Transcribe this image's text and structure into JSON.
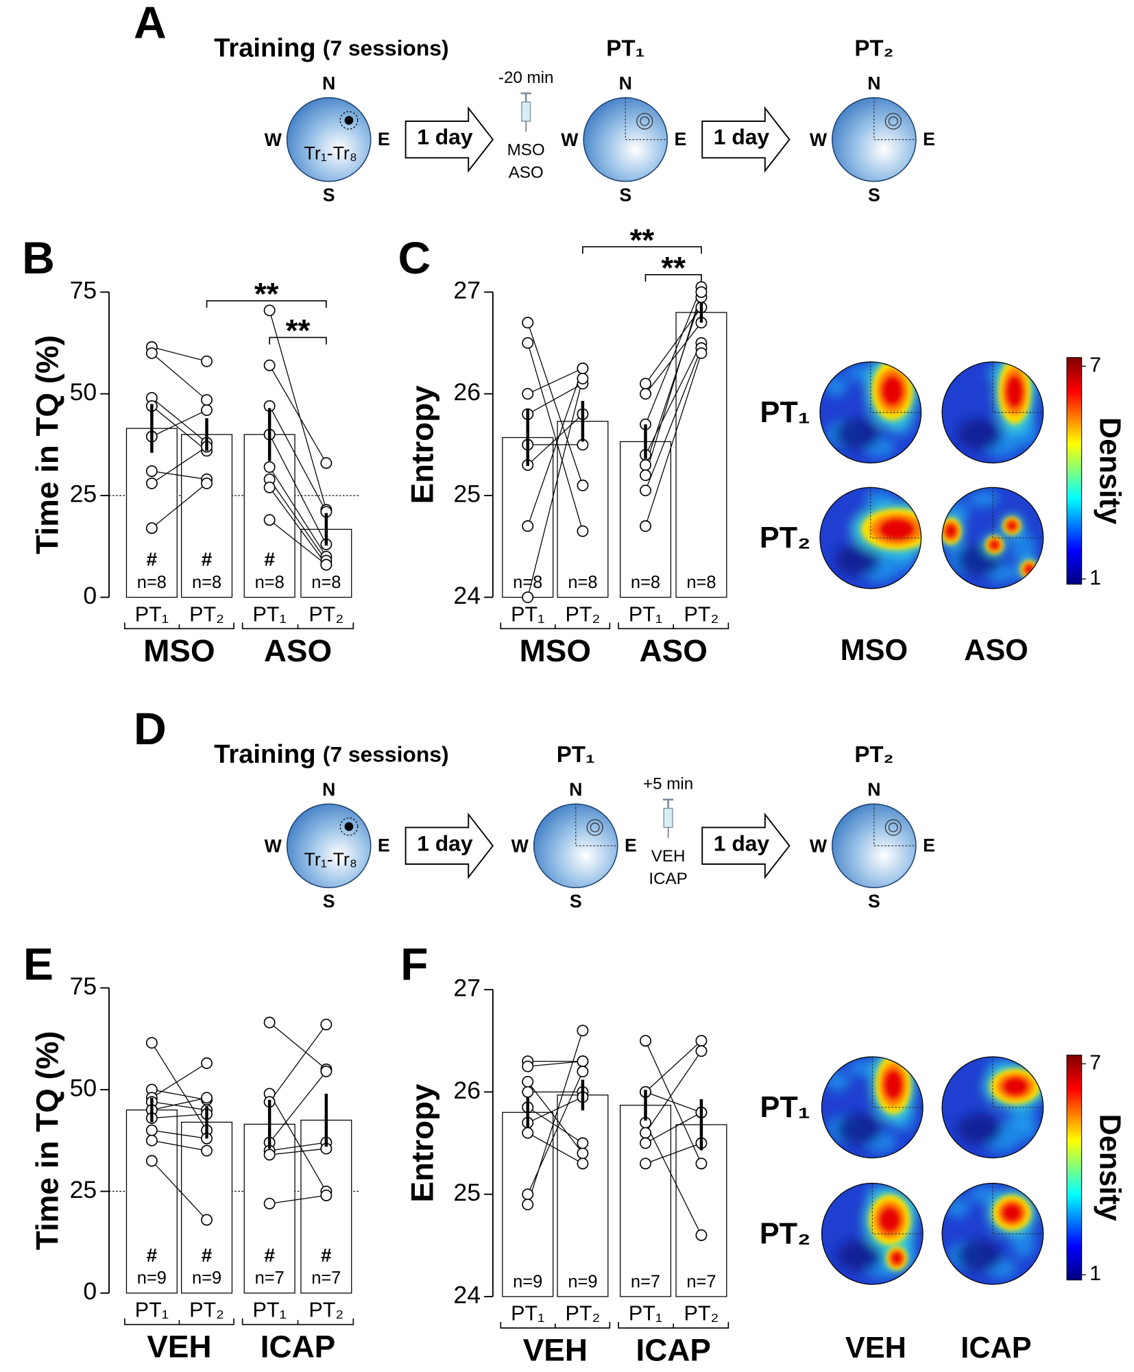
{
  "schematics": [
    {
      "letter": "A",
      "training": "Training",
      "sessions": "(7 sessions)",
      "trials": "Tr₁-Tr₈",
      "compass": {
        "N": "N",
        "E": "E",
        "S": "S",
        "W": "W"
      },
      "interval": "1 day",
      "injection": {
        "time": "-20 min",
        "drugs": [
          "MSO",
          "ASO"
        ]
      },
      "probes": [
        "PT₁",
        "PT₂"
      ]
    },
    {
      "letter": "D",
      "training": "Training",
      "sessions": "(7 sessions)",
      "trials": "Tr₁-Tr₈",
      "compass": {
        "N": "N",
        "E": "E",
        "S": "S",
        "W": "W"
      },
      "interval": "1 day",
      "injection": {
        "time": "+5 min",
        "drugs": [
          "VEH",
          "ICAP"
        ]
      },
      "probes": [
        "PT₁",
        "PT₂"
      ]
    }
  ],
  "heatmaps": [
    {
      "rows": [
        "PT₁",
        "PT₂"
      ],
      "columns": [
        "MSO",
        "ASO"
      ],
      "colorbar": {
        "label": "Density",
        "ticks": [
          1,
          7
        ]
      }
    },
    {
      "rows": [
        "PT₁",
        "PT₂"
      ],
      "columns": [
        "VEH",
        "ICAP"
      ],
      "colorbar": {
        "label": "Density",
        "ticks": [
          1,
          7
        ]
      }
    }
  ],
  "chart_data": [
    {
      "type": "bar",
      "panel": "B",
      "ylabel": "Time in TQ (%)",
      "color": "#ffffff",
      "categories": [
        "PT₁",
        "PT₂",
        "PT₁",
        "PT₂"
      ],
      "groups": [
        "MSO",
        "ASO"
      ],
      "values": [
        41.5,
        40,
        40,
        16.7
      ],
      "errors": [
        6,
        4,
        6.5,
        4
      ],
      "points": [
        [
          61.5,
          60,
          49,
          47,
          39.5,
          31,
          28,
          17
        ],
        [
          58,
          48.5,
          38,
          36,
          46,
          29,
          37,
          28
        ],
        [
          70.5,
          57,
          47,
          40,
          32,
          29,
          27,
          19
        ],
        [
          21.5,
          33,
          21,
          13,
          10,
          9,
          8,
          8
        ]
      ],
      "n_labels": [
        "n=8",
        "n=8",
        "n=8",
        "n=8"
      ],
      "markers": [
        "#",
        "#",
        "#",
        null
      ],
      "reference_line": 25,
      "significance": [
        {
          "bars": [
            1,
            3
          ],
          "label": "**"
        },
        {
          "bars": [
            2,
            3
          ],
          "label": "**"
        }
      ],
      "ylim": [
        0,
        75
      ],
      "yticks": [
        0,
        25,
        50,
        75
      ]
    },
    {
      "type": "bar",
      "panel": "C",
      "ylabel": "Entropy",
      "color": "#ffffff",
      "categories": [
        "PT₁",
        "PT₂",
        "PT₁",
        "PT₂"
      ],
      "groups": [
        "MSO",
        "ASO"
      ],
      "values": [
        25.57,
        25.73,
        25.53,
        26.8
      ],
      "errors": [
        0.28,
        0.2,
        0.17,
        0.1
      ],
      "points": [
        [
          26.7,
          26.5,
          26.0,
          25.8,
          25.5,
          25.3,
          24.7,
          24.0
        ],
        [
          25.1,
          24.65,
          26.25,
          26.1,
          25.5,
          25.8,
          26.25,
          26.15
        ],
        [
          26.1,
          26.0,
          25.7,
          25.4,
          25.3,
          25.2,
          25.05,
          24.7
        ],
        [
          26.85,
          26.7,
          27.05,
          26.5,
          26.95,
          27.0,
          26.45,
          26.4
        ]
      ],
      "n_labels": [
        "n=8",
        "n=8",
        "n=8",
        "n=8"
      ],
      "significance": [
        {
          "bars": [
            1,
            3
          ],
          "label": "**"
        },
        {
          "bars": [
            2,
            3
          ],
          "label": "**"
        }
      ],
      "ylim": [
        24,
        27
      ],
      "yticks": [
        24,
        25,
        26,
        27
      ]
    },
    {
      "type": "bar",
      "panel": "E",
      "ylabel": "Time in TQ (%)",
      "color": "#ffffff",
      "categories": [
        "PT₁",
        "PT₂",
        "PT₁",
        "PT₂"
      ],
      "groups": [
        "VEH",
        "ICAP"
      ],
      "values": [
        45,
        42,
        41.5,
        42.5
      ],
      "errors": [
        3,
        4,
        6,
        6.5
      ],
      "points": [
        [
          61.5,
          50,
          48,
          47,
          45,
          43,
          40,
          37.5,
          32.5
        ],
        [
          40,
          47.5,
          56.5,
          45,
          48,
          44,
          38,
          35,
          18
        ],
        [
          66.5,
          49,
          47,
          37,
          35,
          34,
          22
        ],
        [
          55,
          25,
          66,
          54.5,
          37,
          35.5,
          24
        ]
      ],
      "n_labels": [
        "n=9",
        "n=9",
        "n=7",
        "n=7"
      ],
      "markers": [
        "#",
        "#",
        "#",
        "#"
      ],
      "reference_line": 25,
      "ylim": [
        0,
        75
      ],
      "yticks": [
        0,
        25,
        50,
        75
      ]
    },
    {
      "type": "bar",
      "panel": "F",
      "ylabel": "Entropy",
      "color": "#ffffff",
      "categories": [
        "PT₁",
        "PT₂",
        "PT₁",
        "PT₂"
      ],
      "groups": [
        "VEH",
        "ICAP"
      ],
      "values": [
        25.8,
        25.97,
        25.87,
        25.68
      ],
      "errors": [
        0.15,
        0.15,
        0.15,
        0.25
      ],
      "points": [
        [
          26.3,
          26.25,
          26.1,
          26.0,
          25.85,
          25.7,
          25.6,
          25.0,
          24.9
        ],
        [
          26.3,
          26.3,
          25.4,
          26.0,
          25.5,
          25.95,
          25.3,
          26.2,
          26.6
        ],
        [
          26.5,
          26.0,
          26.0,
          25.7,
          25.6,
          25.5,
          25.3
        ],
        [
          25.3,
          26.5,
          25.8,
          24.6,
          26.4,
          25.8,
          25.5
        ]
      ],
      "n_labels": [
        "n=9",
        "n=9",
        "n=7",
        "n=7"
      ],
      "ylim": [
        24,
        27
      ],
      "yticks": [
        24,
        25,
        26,
        27
      ]
    }
  ]
}
